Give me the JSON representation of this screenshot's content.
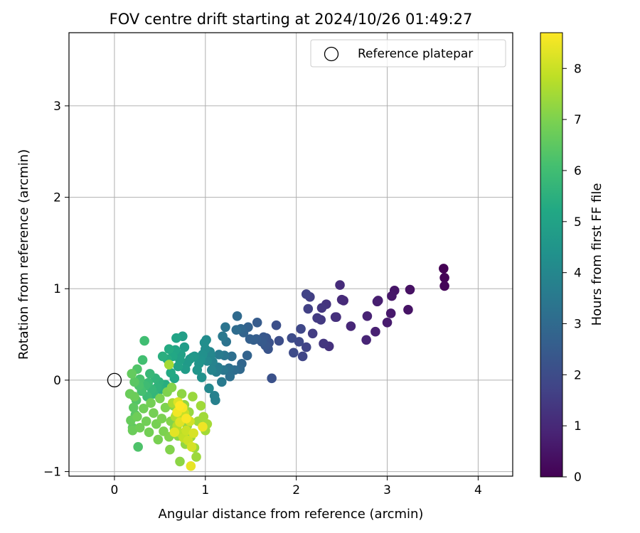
{
  "chart_data": {
    "type": "scatter",
    "title": "FOV centre drift starting at 2024/10/26 01:49:27",
    "xlabel": "Angular distance from reference (arcmin)",
    "ylabel": "Rotation from reference (arcmin)",
    "xlim": [
      -0.5,
      4.38
    ],
    "ylim": [
      -1.05,
      3.8
    ],
    "xticks": [
      0,
      1,
      2,
      3,
      4
    ],
    "yticks": [
      -1,
      0,
      1,
      2,
      3
    ],
    "grid": true,
    "legend": {
      "position": "top-right",
      "entries": [
        "Reference platepar"
      ]
    },
    "reference_point": {
      "x": 0,
      "y": 0,
      "label": "Reference platepar"
    },
    "colorbar": {
      "label": "Hours from first FF file",
      "colormap": "viridis",
      "range": [
        0,
        8.7
      ],
      "ticks": [
        0,
        1,
        2,
        3,
        4,
        5,
        6,
        7,
        8
      ]
    },
    "points": [
      {
        "x": 3.62,
        "y": 1.22,
        "c": 0.0
      },
      {
        "x": 3.63,
        "y": 1.12,
        "c": 0.05
      },
      {
        "x": 3.63,
        "y": 1.03,
        "c": 0.1
      },
      {
        "x": 3.25,
        "y": 0.99,
        "c": 0.4
      },
      {
        "x": 3.23,
        "y": 0.77,
        "c": 0.45
      },
      {
        "x": 3.08,
        "y": 0.98,
        "c": 0.5
      },
      {
        "x": 3.05,
        "y": 0.92,
        "c": 0.55
      },
      {
        "x": 3.04,
        "y": 0.73,
        "c": 0.6
      },
      {
        "x": 3.0,
        "y": 0.63,
        "c": 0.65
      },
      {
        "x": 2.9,
        "y": 0.87,
        "c": 0.7
      },
      {
        "x": 2.89,
        "y": 0.86,
        "c": 0.75
      },
      {
        "x": 2.87,
        "y": 0.53,
        "c": 0.8
      },
      {
        "x": 2.78,
        "y": 0.7,
        "c": 0.85
      },
      {
        "x": 2.77,
        "y": 0.44,
        "c": 0.9
      },
      {
        "x": 2.6,
        "y": 0.59,
        "c": 0.95
      },
      {
        "x": 2.52,
        "y": 0.87,
        "c": 1.0
      },
      {
        "x": 2.5,
        "y": 0.88,
        "c": 1.05
      },
      {
        "x": 2.48,
        "y": 1.04,
        "c": 1.1
      },
      {
        "x": 2.44,
        "y": 0.69,
        "c": 1.15
      },
      {
        "x": 2.43,
        "y": 0.69,
        "c": 1.2
      },
      {
        "x": 2.36,
        "y": 0.37,
        "c": 1.25
      },
      {
        "x": 2.33,
        "y": 0.83,
        "c": 1.3
      },
      {
        "x": 2.3,
        "y": 0.4,
        "c": 1.35
      },
      {
        "x": 2.28,
        "y": 0.79,
        "c": 1.4
      },
      {
        "x": 2.27,
        "y": 0.66,
        "c": 1.45
      },
      {
        "x": 2.23,
        "y": 0.68,
        "c": 1.5
      },
      {
        "x": 2.18,
        "y": 0.51,
        "c": 1.55
      },
      {
        "x": 2.15,
        "y": 0.91,
        "c": 1.6
      },
      {
        "x": 2.13,
        "y": 0.78,
        "c": 1.65
      },
      {
        "x": 2.11,
        "y": 0.94,
        "c": 1.7
      },
      {
        "x": 2.11,
        "y": 0.36,
        "c": 1.75
      },
      {
        "x": 2.07,
        "y": 0.26,
        "c": 1.8
      },
      {
        "x": 2.05,
        "y": 0.56,
        "c": 1.85
      },
      {
        "x": 2.03,
        "y": 0.42,
        "c": 1.9
      },
      {
        "x": 1.97,
        "y": 0.3,
        "c": 1.95
      },
      {
        "x": 1.95,
        "y": 0.46,
        "c": 2.0
      },
      {
        "x": 1.81,
        "y": 0.43,
        "c": 2.05
      },
      {
        "x": 1.78,
        "y": 0.6,
        "c": 2.1
      },
      {
        "x": 1.73,
        "y": 0.02,
        "c": 2.15
      },
      {
        "x": 1.7,
        "y": 0.41,
        "c": 2.2
      },
      {
        "x": 1.69,
        "y": 0.34,
        "c": 2.25
      },
      {
        "x": 1.67,
        "y": 0.46,
        "c": 2.3
      },
      {
        "x": 1.66,
        "y": 0.38,
        "c": 2.35
      },
      {
        "x": 1.64,
        "y": 0.47,
        "c": 2.4
      },
      {
        "x": 1.62,
        "y": 0.42,
        "c": 2.45
      },
      {
        "x": 1.57,
        "y": 0.63,
        "c": 2.5
      },
      {
        "x": 1.56,
        "y": 0.45,
        "c": 2.55
      },
      {
        "x": 1.53,
        "y": 0.44,
        "c": 2.6
      },
      {
        "x": 1.49,
        "y": 0.45,
        "c": 2.65
      },
      {
        "x": 1.47,
        "y": 0.58,
        "c": 2.7
      },
      {
        "x": 1.46,
        "y": 0.27,
        "c": 2.75
      },
      {
        "x": 1.42,
        "y": 0.52,
        "c": 2.8
      },
      {
        "x": 1.4,
        "y": 0.18,
        "c": 2.85
      },
      {
        "x": 1.39,
        "y": 0.56,
        "c": 2.9
      },
      {
        "x": 1.38,
        "y": 0.12,
        "c": 2.95
      },
      {
        "x": 1.35,
        "y": 0.7,
        "c": 3.0
      },
      {
        "x": 1.34,
        "y": 0.55,
        "c": 3.05
      },
      {
        "x": 1.32,
        "y": 0.11,
        "c": 3.1
      },
      {
        "x": 1.29,
        "y": 0.26,
        "c": 3.15
      },
      {
        "x": 1.27,
        "y": 0.04,
        "c": 3.2
      },
      {
        "x": 1.26,
        "y": 0.13,
        "c": 3.25
      },
      {
        "x": 1.23,
        "y": 0.42,
        "c": 3.3
      },
      {
        "x": 1.22,
        "y": 0.58,
        "c": 3.35
      },
      {
        "x": 1.21,
        "y": 0.27,
        "c": 3.4
      },
      {
        "x": 1.2,
        "y": 0.11,
        "c": 3.45
      },
      {
        "x": 1.19,
        "y": 0.48,
        "c": 3.5
      },
      {
        "x": 1.18,
        "y": -0.02,
        "c": 3.55
      },
      {
        "x": 1.15,
        "y": 0.28,
        "c": 3.6
      },
      {
        "x": 1.14,
        "y": 0.14,
        "c": 3.65
      },
      {
        "x": 1.12,
        "y": 0.09,
        "c": 3.7
      },
      {
        "x": 1.11,
        "y": -0.22,
        "c": 3.75
      },
      {
        "x": 1.1,
        "y": -0.17,
        "c": 3.8
      },
      {
        "x": 1.08,
        "y": 0.2,
        "c": 3.85
      },
      {
        "x": 1.07,
        "y": 0.11,
        "c": 3.9
      },
      {
        "x": 1.06,
        "y": 0.27,
        "c": 3.95
      },
      {
        "x": 1.05,
        "y": 0.31,
        "c": 4.0
      },
      {
        "x": 1.04,
        "y": -0.09,
        "c": 4.05
      },
      {
        "x": 1.02,
        "y": 0.21,
        "c": 4.1
      },
      {
        "x": 1.01,
        "y": 0.44,
        "c": 4.15
      },
      {
        "x": 1.0,
        "y": 0.34,
        "c": 4.2
      },
      {
        "x": 0.99,
        "y": 0.41,
        "c": 4.25
      },
      {
        "x": 0.97,
        "y": 0.28,
        "c": 4.3
      },
      {
        "x": 0.96,
        "y": 0.03,
        "c": 4.35
      },
      {
        "x": 0.95,
        "y": 0.22,
        "c": 4.4
      },
      {
        "x": 0.93,
        "y": 0.18,
        "c": 4.45
      },
      {
        "x": 0.91,
        "y": 0.11,
        "c": 4.5
      },
      {
        "x": 0.88,
        "y": 0.26,
        "c": 4.55
      },
      {
        "x": 0.86,
        "y": 0.25,
        "c": 4.6
      },
      {
        "x": 0.83,
        "y": 0.23,
        "c": 4.65
      },
      {
        "x": 0.8,
        "y": 0.19,
        "c": 4.7
      },
      {
        "x": 0.78,
        "y": 0.12,
        "c": 4.75
      },
      {
        "x": 0.77,
        "y": 0.36,
        "c": 4.8
      },
      {
        "x": 0.75,
        "y": 0.48,
        "c": 4.85
      },
      {
        "x": 0.73,
        "y": 0.28,
        "c": 4.9
      },
      {
        "x": 0.72,
        "y": 0.22,
        "c": 4.95
      },
      {
        "x": 0.7,
        "y": 0.15,
        "c": 5.0
      },
      {
        "x": 0.68,
        "y": 0.46,
        "c": 5.05
      },
      {
        "x": 0.67,
        "y": 0.33,
        "c": 5.1
      },
      {
        "x": 0.66,
        "y": 0.02,
        "c": 5.15
      },
      {
        "x": 0.64,
        "y": 0.26,
        "c": 5.2
      },
      {
        "x": 0.62,
        "y": 0.08,
        "c": 5.25
      },
      {
        "x": 0.6,
        "y": 0.34,
        "c": 5.3
      },
      {
        "x": 0.58,
        "y": 0.23,
        "c": 5.35
      },
      {
        "x": 0.56,
        "y": -0.05,
        "c": 5.4
      },
      {
        "x": 0.53,
        "y": 0.26,
        "c": 5.45
      },
      {
        "x": 0.51,
        "y": -0.1,
        "c": 5.5
      },
      {
        "x": 0.49,
        "y": -0.02,
        "c": 5.55
      },
      {
        "x": 0.47,
        "y": -0.08,
        "c": 5.6
      },
      {
        "x": 0.45,
        "y": 0.02,
        "c": 5.65
      },
      {
        "x": 0.43,
        "y": -0.15,
        "c": 5.7
      },
      {
        "x": 0.41,
        "y": -0.1,
        "c": 5.75
      },
      {
        "x": 0.39,
        "y": 0.07,
        "c": 5.8
      },
      {
        "x": 0.37,
        "y": -0.03,
        "c": 5.85
      },
      {
        "x": 0.36,
        "y": -0.18,
        "c": 5.9
      },
      {
        "x": 0.34,
        "y": -0.06,
        "c": 5.95
      },
      {
        "x": 0.33,
        "y": 0.43,
        "c": 6.0
      },
      {
        "x": 0.31,
        "y": 0.22,
        "c": 6.05
      },
      {
        "x": 0.3,
        "y": -0.12,
        "c": 6.1
      },
      {
        "x": 0.28,
        "y": 0.01,
        "c": 6.15
      },
      {
        "x": 0.27,
        "y": -0.06,
        "c": 6.2
      },
      {
        "x": 0.26,
        "y": -0.73,
        "c": 6.25
      },
      {
        "x": 0.25,
        "y": 0.12,
        "c": 6.3
      },
      {
        "x": 0.24,
        "y": -0.22,
        "c": 6.35
      },
      {
        "x": 0.23,
        "y": -0.38,
        "c": 6.4
      },
      {
        "x": 0.22,
        "y": -0.02,
        "c": 6.45
      },
      {
        "x": 0.21,
        "y": -0.3,
        "c": 6.5
      },
      {
        "x": 0.2,
        "y": -0.52,
        "c": 6.55
      },
      {
        "x": 0.19,
        "y": 0.07,
        "c": 6.6
      },
      {
        "x": 0.18,
        "y": -0.44,
        "c": 6.65
      },
      {
        "x": 0.17,
        "y": -0.15,
        "c": 6.7
      },
      {
        "x": 0.2,
        "y": -0.55,
        "c": 6.72
      },
      {
        "x": 0.22,
        "y": -0.18,
        "c": 6.74
      },
      {
        "x": 0.25,
        "y": -0.4,
        "c": 6.76
      },
      {
        "x": 0.28,
        "y": -0.52,
        "c": 6.78
      },
      {
        "x": 0.32,
        "y": -0.31,
        "c": 6.8
      },
      {
        "x": 0.35,
        "y": -0.45,
        "c": 6.82
      },
      {
        "x": 0.38,
        "y": -0.57,
        "c": 6.84
      },
      {
        "x": 0.4,
        "y": -0.25,
        "c": 6.86
      },
      {
        "x": 0.43,
        "y": -0.36,
        "c": 6.88
      },
      {
        "x": 0.46,
        "y": -0.48,
        "c": 6.9
      },
      {
        "x": 0.48,
        "y": -0.65,
        "c": 6.92
      },
      {
        "x": 0.5,
        "y": -0.2,
        "c": 6.94
      },
      {
        "x": 0.52,
        "y": -0.42,
        "c": 6.96
      },
      {
        "x": 0.54,
        "y": -0.56,
        "c": 6.98
      },
      {
        "x": 0.56,
        "y": -0.3,
        "c": 7.0
      },
      {
        "x": 0.58,
        "y": -0.13,
        "c": 7.02
      },
      {
        "x": 0.6,
        "y": -0.62,
        "c": 7.04
      },
      {
        "x": 0.61,
        "y": -0.76,
        "c": 7.06
      },
      {
        "x": 0.62,
        "y": -0.45,
        "c": 7.08
      },
      {
        "x": 0.63,
        "y": -0.08,
        "c": 7.1
      },
      {
        "x": 0.65,
        "y": -0.28,
        "c": 7.12
      },
      {
        "x": 0.66,
        "y": -0.53,
        "c": 7.14
      },
      {
        "x": 0.68,
        "y": -0.38,
        "c": 7.16
      },
      {
        "x": 0.7,
        "y": -0.61,
        "c": 7.18
      },
      {
        "x": 0.72,
        "y": -0.89,
        "c": 7.2
      },
      {
        "x": 0.74,
        "y": -0.15,
        "c": 7.22
      },
      {
        "x": 0.75,
        "y": -0.44,
        "c": 7.24
      },
      {
        "x": 0.77,
        "y": -0.27,
        "c": 7.26
      },
      {
        "x": 0.78,
        "y": -0.7,
        "c": 7.28
      },
      {
        "x": 0.8,
        "y": -0.5,
        "c": 7.3
      },
      {
        "x": 0.82,
        "y": -0.35,
        "c": 7.32
      },
      {
        "x": 0.84,
        "y": -0.62,
        "c": 7.34
      },
      {
        "x": 0.86,
        "y": -0.18,
        "c": 7.36
      },
      {
        "x": 0.88,
        "y": -0.74,
        "c": 7.38
      },
      {
        "x": 0.9,
        "y": -0.84,
        "c": 7.4
      },
      {
        "x": 0.92,
        "y": -0.45,
        "c": 7.42
      },
      {
        "x": 0.95,
        "y": -0.28,
        "c": 7.44
      },
      {
        "x": 0.98,
        "y": -0.4,
        "c": 7.46
      },
      {
        "x": 1.0,
        "y": -0.55,
        "c": 7.48
      },
      {
        "x": 1.02,
        "y": -0.48,
        "c": 7.5
      },
      {
        "x": 0.6,
        "y": 0.17,
        "c": 7.52
      },
      {
        "x": 0.64,
        "y": -0.25,
        "c": 7.6
      },
      {
        "x": 0.67,
        "y": -0.4,
        "c": 7.65
      },
      {
        "x": 0.69,
        "y": -0.5,
        "c": 7.7
      },
      {
        "x": 0.71,
        "y": -0.32,
        "c": 7.75
      },
      {
        "x": 0.73,
        "y": -0.58,
        "c": 7.8
      },
      {
        "x": 0.74,
        "y": -0.41,
        "c": 7.85
      },
      {
        "x": 0.76,
        "y": -0.63,
        "c": 7.9
      },
      {
        "x": 0.77,
        "y": -0.36,
        "c": 7.95
      },
      {
        "x": 0.79,
        "y": -0.55,
        "c": 8.0
      },
      {
        "x": 0.81,
        "y": -0.66,
        "c": 8.05
      },
      {
        "x": 0.83,
        "y": -0.45,
        "c": 8.1
      },
      {
        "x": 0.85,
        "y": -0.73,
        "c": 8.15
      },
      {
        "x": 0.87,
        "y": -0.58,
        "c": 8.2
      },
      {
        "x": 0.7,
        "y": -0.24,
        "c": 8.25
      },
      {
        "x": 0.72,
        "y": -0.46,
        "c": 8.3
      },
      {
        "x": 0.66,
        "y": -0.57,
        "c": 8.35
      },
      {
        "x": 0.84,
        "y": -0.94,
        "c": 8.4
      },
      {
        "x": 0.97,
        "y": -0.51,
        "c": 8.5
      },
      {
        "x": 0.69,
        "y": -0.35,
        "c": 8.55
      },
      {
        "x": 0.75,
        "y": -0.3,
        "c": 8.6
      },
      {
        "x": 0.79,
        "y": -0.42,
        "c": 8.65
      },
      {
        "x": 0.72,
        "y": -0.28,
        "c": 8.7
      }
    ]
  }
}
